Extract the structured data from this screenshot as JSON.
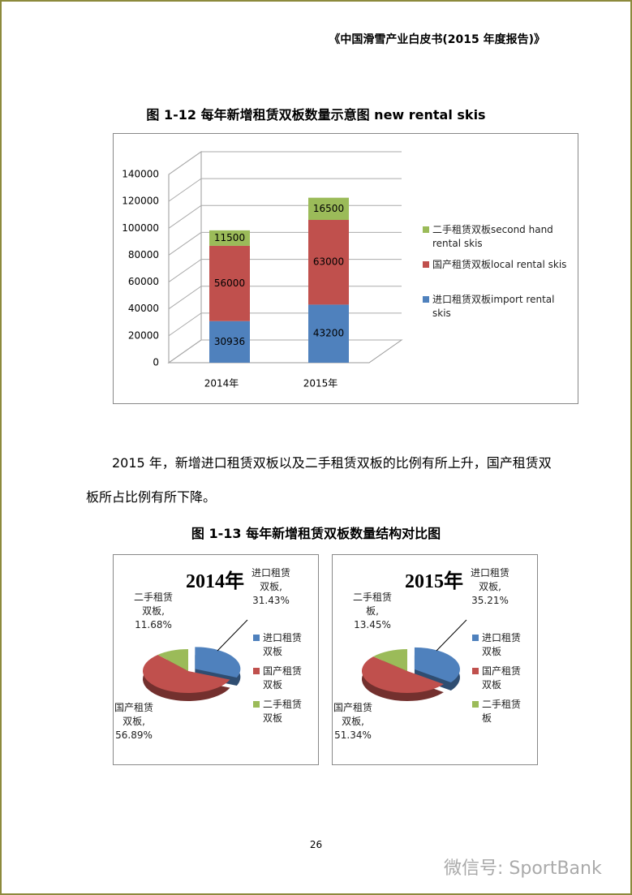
{
  "header": "《中国滑雪产业白皮书(2015 年度报告)》",
  "chart_data": [
    {
      "type": "bar",
      "stacked": true,
      "title": "图 1-12 每年新增租赁双板数量示意图 new rental skis",
      "categories": [
        "2014年",
        "2015年"
      ],
      "series": [
        {
          "name": "进口租赁双板import rental skis",
          "color": "#4f81bd",
          "values": [
            30936,
            43200
          ]
        },
        {
          "name": "国产租赁双板local rental skis",
          "color": "#c0504d",
          "values": [
            56000,
            63000
          ]
        },
        {
          "name": "二手租赁双板second hand rental skis",
          "color": "#9bbb59",
          "values": [
            11500,
            16500
          ]
        }
      ],
      "ylim": [
        0,
        140000
      ],
      "yticks": [
        0,
        20000,
        40000,
        60000,
        80000,
        100000,
        120000,
        140000
      ],
      "grid": true,
      "legend": "right"
    },
    {
      "type": "pie",
      "title": "2014年",
      "categories": [
        "进口租赁双板",
        "国产租赁双板",
        "二手租赁双板"
      ],
      "values": [
        31.43,
        56.89,
        11.68
      ],
      "value_labels": [
        "进口租赁双板, 31.43%",
        "国产租赁双板, 56.89%",
        "二手租赁双板, 11.68%"
      ],
      "colors": [
        "#4f81bd",
        "#c0504d",
        "#9bbb59"
      ],
      "legend": "right"
    },
    {
      "type": "pie",
      "title": "2015年",
      "categories": [
        "进口租赁双板",
        "国产租赁双板",
        "二手租赁板"
      ],
      "values": [
        35.21,
        51.34,
        13.45
      ],
      "value_labels": [
        "进口租赁双板, 35.21%",
        "国产租赁双板, 51.34%",
        "二手租赁板, 13.45%"
      ],
      "colors": [
        "#4f81bd",
        "#c0504d",
        "#9bbb59"
      ],
      "legend": "right"
    }
  ],
  "paragraph": "2015 年，新增进口租赁双板以及二手租赁双板的比例有所上升，国产租赁双板所占比例有所下降。",
  "figure_title": "图 1-13 每年新增租赁双板数量结构对比图",
  "page_number": 26,
  "watermark": "微信号: SportBank"
}
